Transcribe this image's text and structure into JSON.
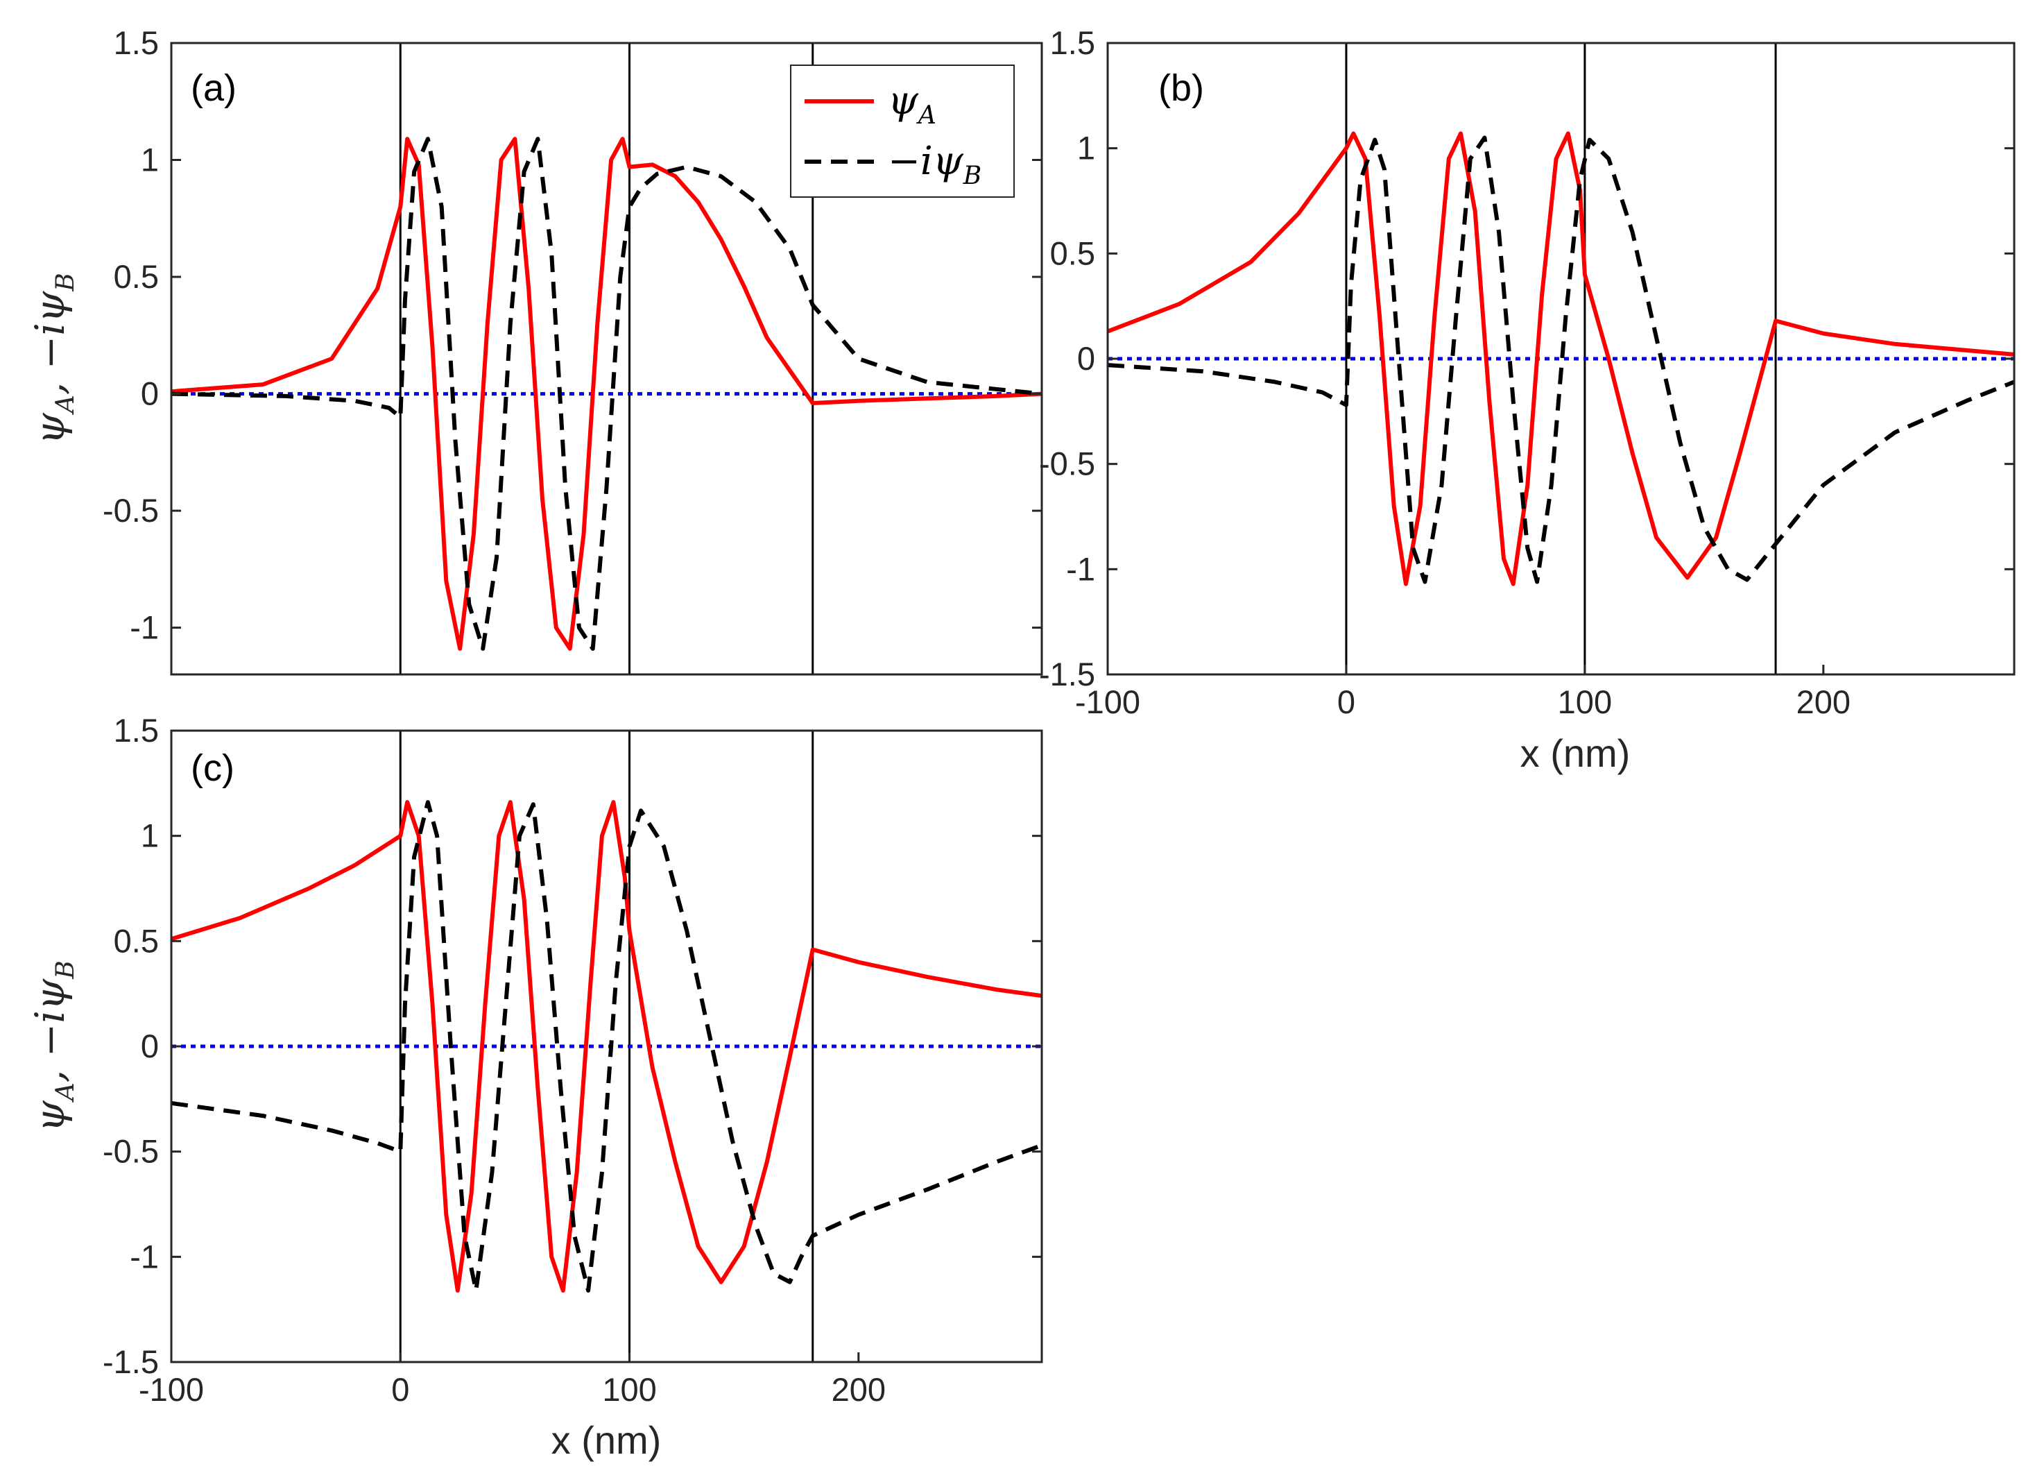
{
  "colors": {
    "psiA": "#ff0000",
    "psiB": "#000000",
    "zero": "#0000ff",
    "axes": "#262626"
  },
  "legend": {
    "psiA": "ψ",
    "psiA_sub": "A",
    "psiB": "−iψ",
    "psiB_sub": "B"
  },
  "chart_data": [
    {
      "type": "line",
      "panel_label": "(a)",
      "xlabel": "",
      "ylabel": {
        "main": "ψ",
        "sub_a": "A",
        "mid": ", −iψ",
        "sub_b": "B"
      },
      "xlim": [
        -100,
        280
      ],
      "ylim": [
        -1.2,
        1.5
      ],
      "xticks": [],
      "xtick_labels": [],
      "yticks": [
        1.5,
        1,
        0.5,
        0,
        -0.5,
        -1
      ],
      "ytick_labels": [
        "1.5",
        "1",
        "0.5",
        "0",
        "-0.5",
        "-1"
      ],
      "boundaries": [
        0,
        100,
        180
      ],
      "series": [
        {
          "name": "ψA",
          "style": "solid",
          "x": [
            -100,
            -60,
            -30,
            -10,
            0,
            3,
            8,
            14,
            20,
            26,
            32,
            38,
            44,
            50,
            56,
            62,
            68,
            74,
            80,
            86,
            92,
            97,
            100,
            110,
            120,
            130,
            140,
            150,
            160,
            170,
            180,
            200,
            230,
            260,
            280
          ],
          "y": [
            0.01,
            0.04,
            0.15,
            0.45,
            0.8,
            1.09,
            0.98,
            0.2,
            -0.8,
            -1.09,
            -0.6,
            0.3,
            1.0,
            1.09,
            0.45,
            -0.45,
            -1.0,
            -1.09,
            -0.6,
            0.3,
            1.0,
            1.09,
            0.97,
            0.98,
            0.93,
            0.82,
            0.66,
            0.46,
            0.24,
            0.1,
            -0.04,
            -0.03,
            -0.02,
            -0.01,
            0.0
          ]
        },
        {
          "name": "−iψB",
          "style": "dashed",
          "x": [
            -100,
            -50,
            -20,
            -5,
            0,
            2,
            6,
            12,
            18,
            24,
            30,
            36,
            42,
            48,
            54,
            60,
            66,
            72,
            78,
            84,
            90,
            96,
            100,
            105,
            112,
            125,
            140,
            155,
            170,
            180,
            200,
            230,
            260,
            280
          ],
          "y": [
            0.0,
            -0.01,
            -0.03,
            -0.06,
            -0.1,
            0.4,
            0.95,
            1.09,
            0.8,
            -0.2,
            -0.9,
            -1.09,
            -0.7,
            0.3,
            0.95,
            1.09,
            0.6,
            -0.4,
            -1.0,
            -1.09,
            -0.4,
            0.5,
            0.8,
            0.88,
            0.94,
            0.97,
            0.93,
            0.82,
            0.62,
            0.38,
            0.15,
            0.05,
            0.02,
            0.0
          ]
        },
        {
          "name": "zero",
          "style": "dotted",
          "x": [
            -100,
            280
          ],
          "y": [
            0,
            0
          ]
        }
      ]
    },
    {
      "type": "line",
      "panel_label": "(b)",
      "xlabel": "x (nm)",
      "ylabel": null,
      "xlim": [
        -100,
        280
      ],
      "ylim": [
        -1.5,
        1.5
      ],
      "xticks": [
        -100,
        0,
        100,
        200
      ],
      "xtick_labels": [
        "-100",
        "0",
        "100",
        "200"
      ],
      "yticks": [
        1.5,
        1,
        0.5,
        0,
        -0.5,
        -1,
        -1.5
      ],
      "ytick_labels": [
        "1.5",
        "1",
        "0.5",
        "0",
        "-0.5",
        "-1",
        "-1.5"
      ],
      "boundaries": [
        0,
        100,
        180
      ],
      "series": [
        {
          "name": "ψA",
          "style": "solid",
          "x": [
            -100,
            -70,
            -40,
            -20,
            0,
            3,
            8,
            14,
            20,
            25,
            31,
            37,
            43,
            48,
            54,
            60,
            66,
            70,
            76,
            82,
            88,
            93,
            98,
            100,
            110,
            120,
            130,
            143,
            155,
            165,
            180,
            200,
            230,
            260,
            280
          ],
          "y": [
            0.13,
            0.26,
            0.46,
            0.69,
            1.0,
            1.07,
            0.95,
            0.2,
            -0.7,
            -1.07,
            -0.7,
            0.2,
            0.95,
            1.07,
            0.7,
            -0.2,
            -0.95,
            -1.07,
            -0.6,
            0.3,
            0.95,
            1.07,
            0.8,
            0.4,
            0.0,
            -0.45,
            -0.85,
            -1.04,
            -0.85,
            -0.45,
            0.18,
            0.12,
            0.07,
            0.04,
            0.02
          ]
        },
        {
          "name": "−iψB",
          "style": "dashed",
          "x": [
            -100,
            -60,
            -30,
            -10,
            0,
            2,
            6,
            12,
            16,
            22,
            28,
            33,
            40,
            46,
            52,
            58,
            64,
            70,
            76,
            80,
            86,
            92,
            98,
            102,
            110,
            120,
            130,
            140,
            150,
            160,
            168,
            180,
            200,
            230,
            260,
            280
          ],
          "y": [
            -0.03,
            -0.06,
            -0.11,
            -0.16,
            -0.22,
            0.35,
            0.85,
            1.04,
            0.9,
            0.0,
            -0.9,
            -1.06,
            -0.6,
            0.2,
            0.95,
            1.05,
            0.6,
            -0.2,
            -0.9,
            -1.06,
            -0.6,
            0.2,
            0.85,
            1.04,
            0.95,
            0.6,
            0.1,
            -0.4,
            -0.8,
            -1.0,
            -1.05,
            -0.88,
            -0.6,
            -0.35,
            -0.2,
            -0.11
          ]
        },
        {
          "name": "zero",
          "style": "dotted",
          "x": [
            -100,
            280
          ],
          "y": [
            0,
            0
          ]
        }
      ]
    },
    {
      "type": "line",
      "panel_label": "(c)",
      "xlabel": "x (nm)",
      "ylabel": {
        "main": "ψ",
        "sub_a": "A",
        "mid": ", −iψ",
        "sub_b": "B"
      },
      "xlim": [
        -100,
        280
      ],
      "ylim": [
        -1.5,
        1.5
      ],
      "xticks": [
        -100,
        0,
        100,
        200
      ],
      "xtick_labels": [
        "-100",
        "0",
        "100",
        "200"
      ],
      "yticks": [
        1.5,
        1,
        0.5,
        0,
        -0.5,
        -1,
        -1.5
      ],
      "ytick_labels": [
        "1.5",
        "1",
        "0.5",
        "0",
        "-0.5",
        "-1",
        "-1.5"
      ],
      "boundaries": [
        0,
        100,
        180
      ],
      "series": [
        {
          "name": "ψA",
          "style": "solid",
          "x": [
            -100,
            -70,
            -40,
            -20,
            0,
            3,
            8,
            14,
            20,
            25,
            31,
            37,
            43,
            48,
            54,
            60,
            66,
            71,
            77,
            83,
            88,
            93,
            98,
            100,
            110,
            120,
            130,
            140,
            150,
            160,
            170,
            180,
            200,
            230,
            260,
            280
          ],
          "y": [
            0.51,
            0.61,
            0.75,
            0.86,
            1.0,
            1.16,
            1.0,
            0.2,
            -0.8,
            -1.16,
            -0.7,
            0.2,
            1.0,
            1.16,
            0.7,
            -0.2,
            -1.0,
            -1.16,
            -0.6,
            0.3,
            1.0,
            1.16,
            0.8,
            0.55,
            -0.1,
            -0.55,
            -0.95,
            -1.12,
            -0.95,
            -0.55,
            -0.05,
            0.46,
            0.4,
            0.33,
            0.27,
            0.24
          ]
        },
        {
          "name": "−iψB",
          "style": "dashed",
          "x": [
            -100,
            -60,
            -30,
            -10,
            0,
            2,
            6,
            12,
            16,
            22,
            28,
            33,
            40,
            46,
            52,
            58,
            64,
            70,
            76,
            82,
            88,
            94,
            100,
            105,
            115,
            125,
            135,
            145,
            155,
            163,
            170,
            175,
            180,
            200,
            230,
            260,
            280
          ],
          "y": [
            -0.27,
            -0.33,
            -0.4,
            -0.46,
            -0.5,
            0.2,
            0.9,
            1.16,
            1.0,
            0.0,
            -0.9,
            -1.16,
            -0.6,
            0.2,
            1.0,
            1.15,
            0.6,
            -0.2,
            -0.9,
            -1.16,
            -0.6,
            0.3,
            0.95,
            1.12,
            0.95,
            0.55,
            0.05,
            -0.45,
            -0.85,
            -1.08,
            -1.12,
            -1.0,
            -0.9,
            -0.8,
            -0.68,
            -0.55,
            -0.47
          ]
        },
        {
          "name": "zero",
          "style": "dotted",
          "x": [
            -100,
            280
          ],
          "y": [
            0,
            0
          ]
        }
      ]
    }
  ]
}
